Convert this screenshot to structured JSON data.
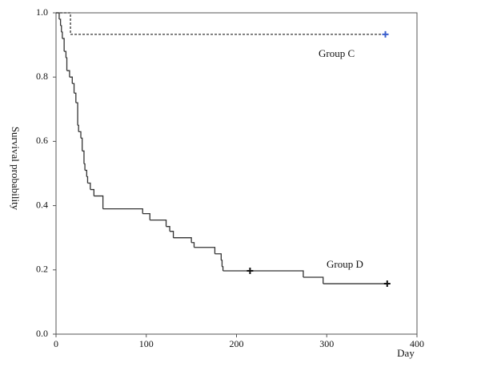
{
  "chart_data": {
    "type": "step",
    "y_label": "Survival probability",
    "x_label": "Day",
    "xlim": [
      0,
      400
    ],
    "xticks": [
      0,
      100,
      200,
      300,
      400
    ],
    "ylim": [
      0,
      1
    ],
    "yticks": [
      {
        "value": 0,
        "label": "0.0"
      },
      {
        "value": 0.2,
        "label": "0.2"
      },
      {
        "value": 0.4,
        "label": "0.4"
      },
      {
        "value": 0.6,
        "label": "0.6"
      },
      {
        "value": 0.8,
        "label": "0.8"
      },
      {
        "value": 1,
        "label": "1.0"
      }
    ],
    "series": [
      {
        "name": "Group C",
        "color": "#333333",
        "dashed": true,
        "censor_color": "#3a5fcd",
        "x": [
          0,
          16,
          365
        ],
        "values": [
          1.0,
          0.933,
          0.933
        ],
        "censored": {
          "x": [
            365
          ],
          "values": [
            0.933
          ]
        }
      },
      {
        "name": "Group D",
        "color": "#333333",
        "dashed": false,
        "censor_color": "#111111",
        "x": [
          0,
          3.5,
          5,
          6,
          7,
          9,
          11,
          12,
          15,
          18,
          20,
          22,
          24,
          25,
          27.5,
          29,
          31,
          32,
          34,
          35,
          38,
          42,
          52,
          96,
          104,
          122,
          126,
          130,
          150,
          153,
          176,
          183,
          184,
          185,
          274,
          296,
          367
        ],
        "values": [
          1.0,
          0.98,
          0.96,
          0.94,
          0.92,
          0.88,
          0.86,
          0.82,
          0.8,
          0.78,
          0.75,
          0.72,
          0.65,
          0.63,
          0.61,
          0.57,
          0.53,
          0.51,
          0.49,
          0.47,
          0.45,
          0.43,
          0.39,
          0.375,
          0.355,
          0.335,
          0.32,
          0.3,
          0.285,
          0.27,
          0.25,
          0.23,
          0.21,
          0.197,
          0.177,
          0.157,
          0.157
        ],
        "censored": {
          "x": [
            215,
            367
          ],
          "values": [
            0.197,
            0.157
          ]
        }
      }
    ]
  }
}
